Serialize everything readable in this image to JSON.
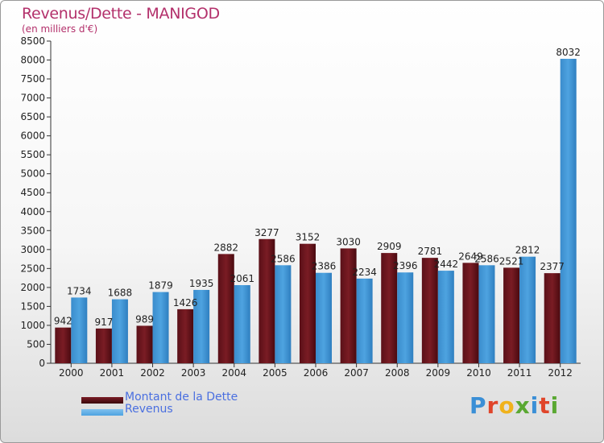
{
  "header": {
    "title": "Revenus/Dette - MANIGOD",
    "subtitle": "(en milliers d'€)"
  },
  "legend": {
    "debt_label": "Montant de la Dette",
    "revenue_label": "Revenus"
  },
  "logo": {
    "text": "Proxiti",
    "letters": [
      {
        "ch": "P",
        "color": "#3a8fd6"
      },
      {
        "ch": "r",
        "color": "#e0452a"
      },
      {
        "ch": "o",
        "color": "#f0b21c"
      },
      {
        "ch": "x",
        "color": "#5aa832"
      },
      {
        "ch": "i",
        "color": "#3a8fd6"
      },
      {
        "ch": "t",
        "color": "#e0452a"
      },
      {
        "ch": "i",
        "color": "#5aa832"
      }
    ]
  },
  "colors": {
    "debt": "#7a1c24",
    "revenue": "#4ea3e0"
  },
  "chart_data": {
    "type": "bar",
    "categories": [
      "2000",
      "2001",
      "2002",
      "2003",
      "2004",
      "2005",
      "2006",
      "2007",
      "2008",
      "2009",
      "2010",
      "2011",
      "2012"
    ],
    "series": [
      {
        "name": "Montant de la Dette",
        "values": [
          942,
          917,
          989,
          1426,
          2882,
          3277,
          3152,
          3030,
          2909,
          2781,
          2649,
          2521,
          2377
        ],
        "labels": [
          "942",
          "917",
          "989",
          "1426",
          "2882",
          "3277",
          "3152",
          "3030",
          "2909",
          "2781",
          "2649",
          "2521",
          "2377"
        ]
      },
      {
        "name": "Revenus",
        "values": [
          1734,
          1688,
          1879,
          1935,
          2061,
          2586,
          2386,
          2234,
          2396,
          2442,
          2586,
          2812,
          8032
        ],
        "labels": [
          "1734",
          "1688",
          "1879",
          "1935",
          "2061",
          "2586",
          "2386",
          "2234",
          "2396",
          "2442",
          "2586",
          "2812",
          "8032"
        ]
      }
    ],
    "ylim": [
      0,
      8500
    ],
    "yticks": [
      0,
      500,
      1000,
      1500,
      2000,
      2500,
      3000,
      3500,
      4000,
      4500,
      5000,
      5500,
      6000,
      6500,
      7000,
      7500,
      8000,
      8500
    ],
    "grid": false,
    "legend_position": "bottom-left"
  }
}
